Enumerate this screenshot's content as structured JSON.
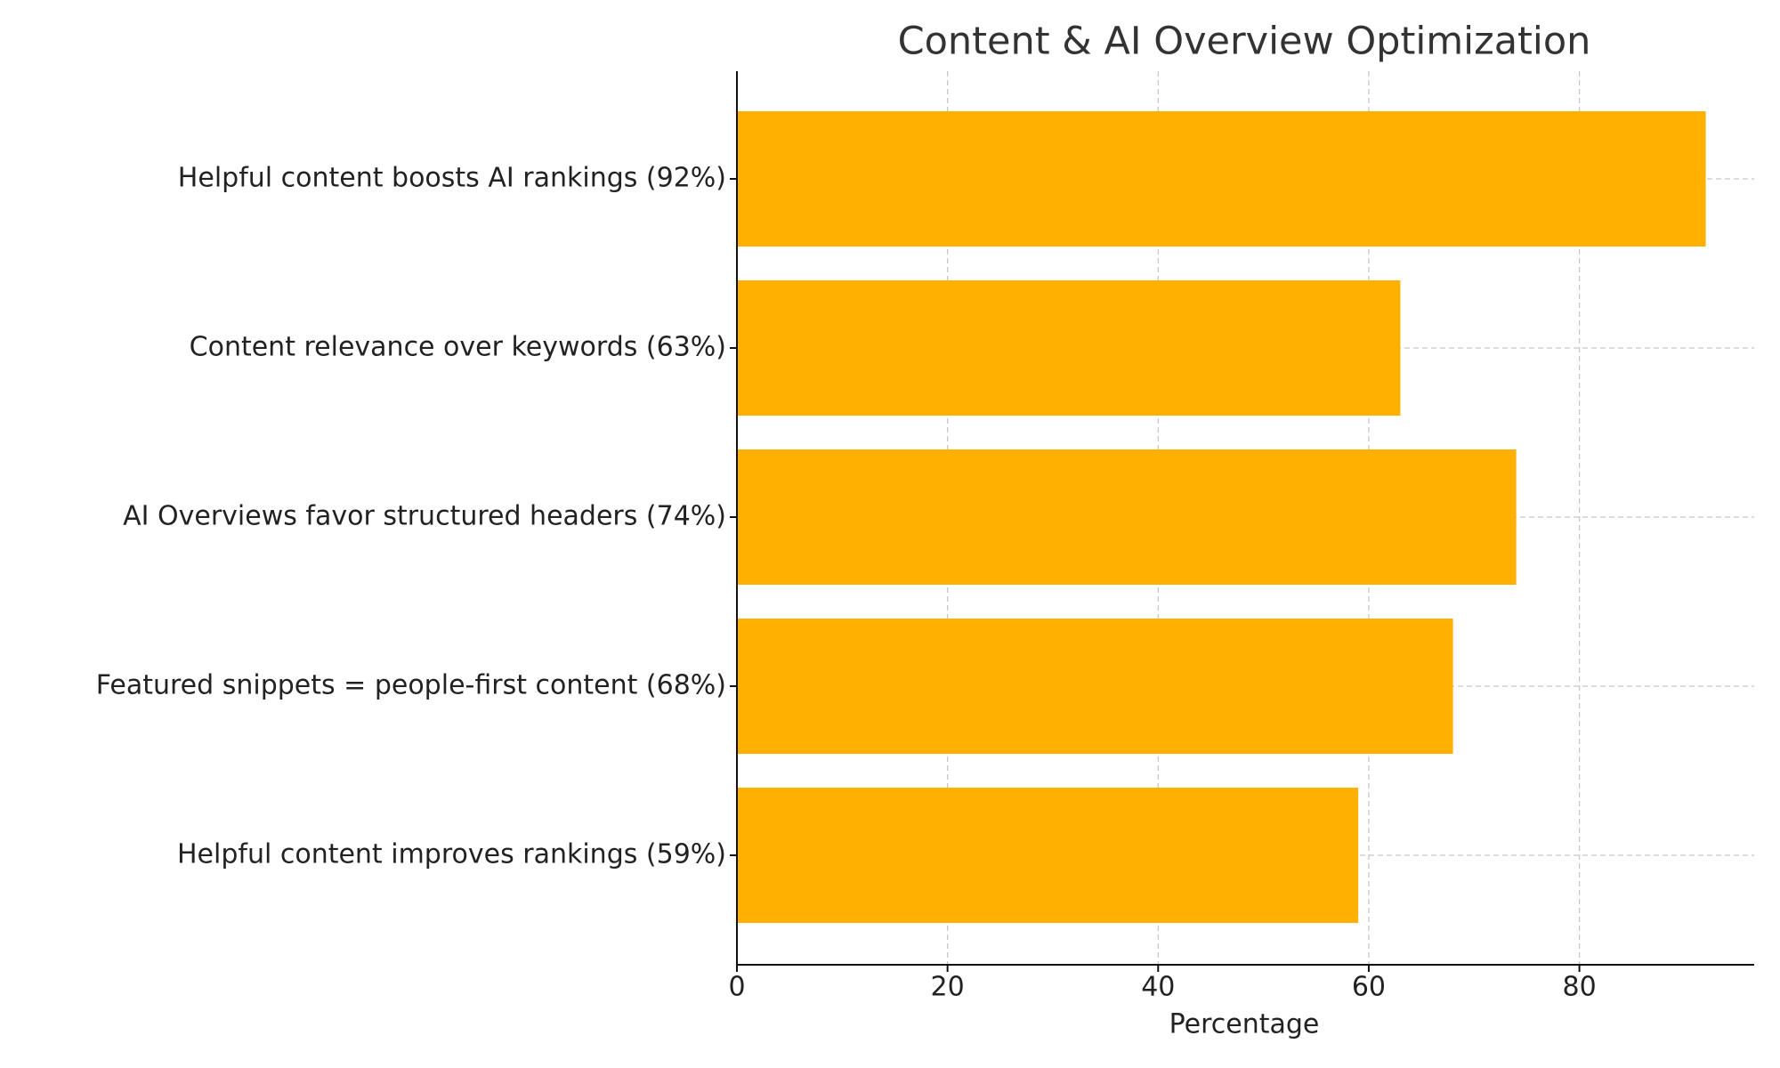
{
  "chart_data": {
    "type": "barh",
    "title": "Content & AI Overview Optimization",
    "xlabel": "Percentage",
    "categories": [
      "Helpful content boosts AI rankings (92%)",
      "Content relevance over keywords (63%)",
      "AI Overviews favor structured headers (74%)",
      "Featured snippets = people-first content (68%)",
      "Helpful content improves rankings (59%)"
    ],
    "values": [
      92,
      63,
      74,
      68,
      59
    ],
    "color": "#ffb000",
    "xlim": [
      0,
      96.6
    ],
    "xticks": [
      0,
      20,
      40,
      60,
      80
    ],
    "grid": true
  }
}
